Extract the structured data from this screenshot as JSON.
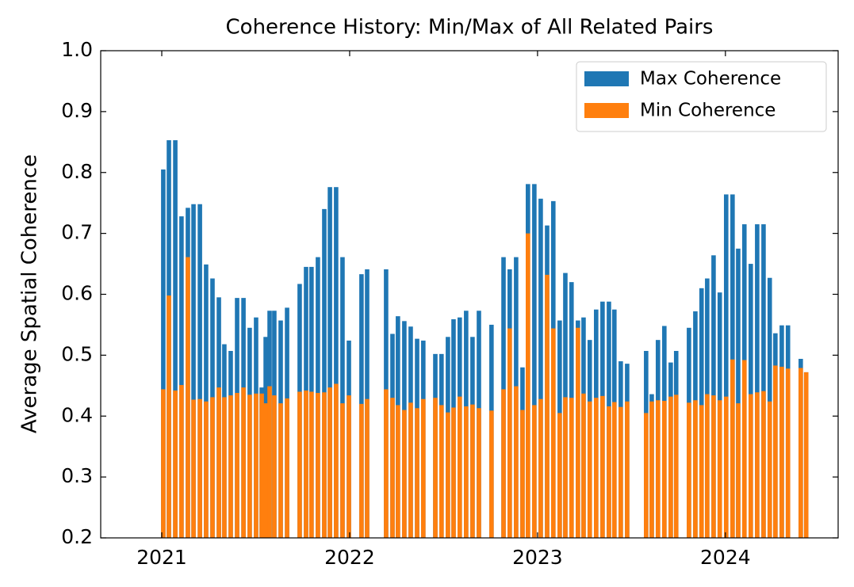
{
  "chart_data": {
    "type": "bar",
    "title": "Coherence History: Min/Max of All Related Pairs",
    "ylabel": "Average Spatial Coherence",
    "x": [
      2021.008,
      2021.038,
      2021.072,
      2021.105,
      2021.139,
      2021.169,
      2021.203,
      2021.236,
      2021.27,
      2021.304,
      2021.333,
      2021.367,
      2021.401,
      2021.435,
      2021.468,
      2021.502,
      2021.532,
      2021.553,
      2021.574,
      2021.599,
      2021.633,
      2021.667,
      2021.734,
      2021.768,
      2021.797,
      2021.831,
      2021.865,
      2021.895,
      2021.928,
      2021.962,
      2021.996,
      2022.063,
      2022.093,
      2022.194,
      2022.228,
      2022.257,
      2022.291,
      2022.325,
      2022.359,
      2022.392,
      2022.456,
      2022.489,
      2022.523,
      2022.553,
      2022.586,
      2022.62,
      2022.654,
      2022.688,
      2022.755,
      2022.819,
      2022.852,
      2022.886,
      2022.92,
      2022.949,
      2022.983,
      2023.017,
      2023.051,
      2023.084,
      2023.118,
      2023.148,
      2023.181,
      2023.215,
      2023.245,
      2023.278,
      2023.312,
      2023.346,
      2023.38,
      2023.409,
      2023.443,
      2023.477,
      2023.578,
      2023.608,
      2023.641,
      2023.675,
      2023.709,
      2023.738,
      2023.806,
      2023.84,
      2023.873,
      2023.903,
      2023.937,
      2023.97,
      2024.004,
      2024.038,
      2024.068,
      2024.101,
      2024.135,
      2024.169,
      2024.203,
      2024.236,
      2024.266,
      2024.3,
      2024.333,
      2024.401,
      2024.43
    ],
    "series": [
      {
        "name": "Max Coherence",
        "color": "#1f77b4",
        "values": [
          0.805,
          0.853,
          0.853,
          0.728,
          0.742,
          0.748,
          0.748,
          0.649,
          0.626,
          0.595,
          0.518,
          0.507,
          0.594,
          0.594,
          0.545,
          0.562,
          0.447,
          0.53,
          0.573,
          0.573,
          0.557,
          0.578,
          0.617,
          0.645,
          0.645,
          0.661,
          0.74,
          0.776,
          0.776,
          0.661,
          0.524,
          0.633,
          0.641,
          0.641,
          0.535,
          0.564,
          0.556,
          0.547,
          0.527,
          0.524,
          0.502,
          0.502,
          0.53,
          0.559,
          0.562,
          0.573,
          0.53,
          0.573,
          0.55,
          0.661,
          0.641,
          0.661,
          0.48,
          0.781,
          0.781,
          0.757,
          0.713,
          0.753,
          0.557,
          0.635,
          0.62,
          0.557,
          0.562,
          0.525,
          0.575,
          0.588,
          0.588,
          0.575,
          0.49,
          0.486,
          0.507,
          0.436,
          0.525,
          0.548,
          0.488,
          0.507,
          0.545,
          0.572,
          0.61,
          0.626,
          0.664,
          0.603,
          0.764,
          0.764,
          0.675,
          0.715,
          0.65,
          0.715,
          0.715,
          0.627,
          0.536,
          0.549,
          0.549,
          0.494,
          0.472
        ]
      },
      {
        "name": "Min Coherence",
        "color": "#ff7f0e",
        "values": [
          0.444,
          0.598,
          0.442,
          0.451,
          0.661,
          0.427,
          0.428,
          0.424,
          0.431,
          0.447,
          0.431,
          0.434,
          0.438,
          0.447,
          0.435,
          0.437,
          0.437,
          0.421,
          0.449,
          0.434,
          0.421,
          0.429,
          0.44,
          0.442,
          0.44,
          0.438,
          0.439,
          0.447,
          0.453,
          0.421,
          0.434,
          0.42,
          0.428,
          0.444,
          0.43,
          0.418,
          0.41,
          0.422,
          0.413,
          0.428,
          0.43,
          0.418,
          0.406,
          0.414,
          0.432,
          0.416,
          0.419,
          0.413,
          0.409,
          0.444,
          0.544,
          0.449,
          0.41,
          0.7,
          0.418,
          0.428,
          0.632,
          0.544,
          0.405,
          0.431,
          0.43,
          0.545,
          0.437,
          0.424,
          0.43,
          0.433,
          0.416,
          0.423,
          0.415,
          0.424,
          0.405,
          0.424,
          0.426,
          0.425,
          0.432,
          0.435,
          0.422,
          0.426,
          0.418,
          0.436,
          0.434,
          0.426,
          0.432,
          0.493,
          0.421,
          0.492,
          0.436,
          0.439,
          0.441,
          0.424,
          0.483,
          0.481,
          0.478,
          0.479,
          0.472
        ]
      }
    ],
    "xlim": [
      2020.675,
      2024.6
    ],
    "xticks": [
      2021,
      2022,
      2023,
      2024
    ],
    "ylim": [
      0.2,
      1.0
    ],
    "yticks": [
      0.2,
      0.3,
      0.4,
      0.5,
      0.6,
      0.7,
      0.8,
      0.9,
      {
        "value": 1.0,
        "label": "1.0"
      }
    ],
    "legend": "upper right"
  }
}
